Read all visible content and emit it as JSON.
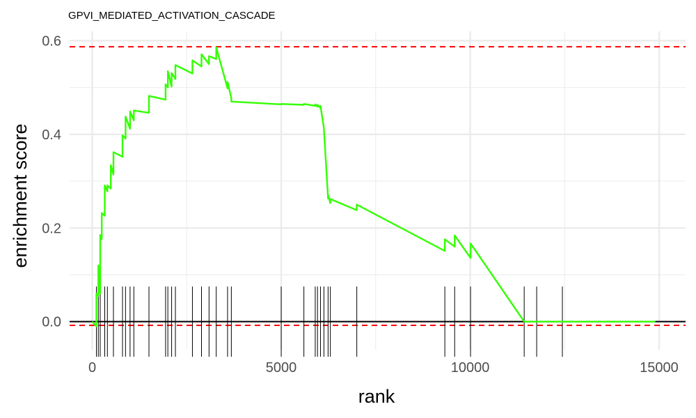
{
  "chart_data": {
    "type": "line",
    "title": "GPVI_MEDIATED_ACTIVATION_CASCADE",
    "xlabel": "rank",
    "ylabel": "enrichment score",
    "xlim": [
      -600,
      15700
    ],
    "ylim": [
      -0.06,
      0.62
    ],
    "x_ticks": [
      0,
      5000,
      10000,
      15000
    ],
    "x_tick_labels": [
      "0",
      "5000",
      "10000",
      "15000"
    ],
    "y_ticks": [
      0.0,
      0.2,
      0.4,
      0.6
    ],
    "y_tick_labels": [
      "0.0",
      "0.2",
      "0.4",
      "0.6"
    ],
    "grid": true,
    "legend": "none",
    "colors": {
      "curve": "#33ff00",
      "threshold": "#ff0000",
      "baseline": "#000000",
      "hit": "#000000",
      "grid": "#ebebeb",
      "tick_label": "#4d4d4d"
    },
    "series": [
      {
        "x": [
          0,
          110,
          110,
          160,
          160,
          210,
          210,
          250,
          250,
          330,
          330,
          400,
          400,
          490,
          490,
          560,
          560,
          800,
          800,
          880,
          880,
          1000,
          1000,
          1100,
          1100,
          1500,
          1500,
          1940,
          1940,
          2000,
          2000,
          2100,
          2100,
          2200,
          2200,
          2650,
          2650,
          2890,
          2890,
          3090,
          3090,
          3280,
          3280,
          3580,
          3580,
          3680,
          3680,
          5000,
          5000,
          5600,
          5600,
          5900,
          5900,
          5960,
          5960,
          6040,
          6040,
          6130,
          6130,
          6240,
          6240,
          6300,
          6300,
          7000,
          7000,
          9330,
          9330,
          9590,
          9590,
          10010,
          10010,
          11430,
          11430,
          11760,
          11760,
          12440,
          12440,
          14900
        ],
        "y": [
          0.0,
          -0.01,
          0.06,
          0.055,
          0.12,
          0.06,
          0.185,
          0.176,
          0.232,
          0.226,
          0.291,
          0.278,
          0.291,
          0.284,
          0.334,
          0.314,
          0.362,
          0.352,
          0.398,
          0.391,
          0.438,
          0.412,
          0.449,
          0.43,
          0.451,
          0.446,
          0.482,
          0.474,
          0.507,
          0.5,
          0.535,
          0.502,
          0.531,
          0.518,
          0.548,
          0.53,
          0.558,
          0.545,
          0.571,
          0.55,
          0.567,
          0.561,
          0.586,
          0.498,
          0.512,
          0.477,
          0.47,
          0.464,
          0.465,
          0.463,
          0.465,
          0.461,
          0.464,
          0.459,
          0.463,
          0.456,
          0.461,
          0.413,
          0.411,
          0.263,
          0.27,
          0.253,
          0.262,
          0.238,
          0.25,
          0.151,
          0.176,
          0.16,
          0.184,
          0.136,
          0.167,
          0.0,
          0.0,
          0.0,
          0.0,
          0.0,
          0.0,
          0.0
        ]
      }
    ],
    "hits": [
      110,
      160,
      210,
      330,
      400,
      560,
      800,
      880,
      1000,
      1100,
      1500,
      1940,
      2000,
      2100,
      2200,
      2650,
      2890,
      3090,
      3280,
      3580,
      3680,
      5000,
      5600,
      5900,
      5960,
      6040,
      6130,
      6240,
      6300,
      7000,
      9330,
      9590,
      10010,
      11430,
      11760,
      12440
    ],
    "baseline": 0.0,
    "thresholds": [
      0.587,
      -0.008
    ]
  }
}
